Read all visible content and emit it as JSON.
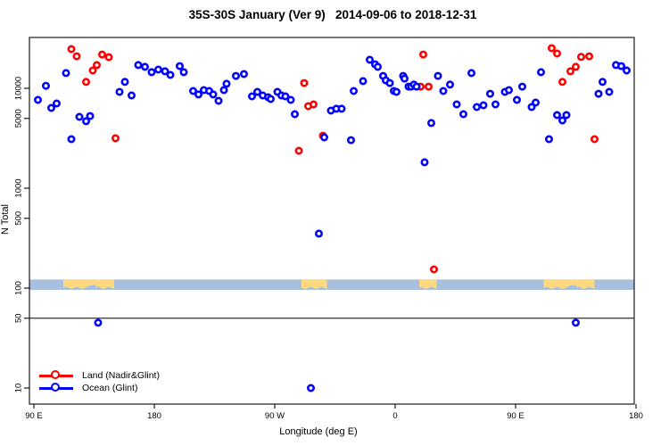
{
  "title": "35S-30S January (Ver 9)   2014-09-06 to 2018-12-31",
  "chart_data": {
    "type": "scatter",
    "xlabel": "Longitude (deg E)",
    "ylabel": "N Total",
    "x_axis": {
      "tick_positions_deg": [
        0,
        90,
        180,
        270,
        360,
        450
      ],
      "tick_labels": [
        "90 E",
        "180",
        "90 W",
        "0",
        "90 E",
        "180"
      ],
      "note": "longitude wraps eastward from 90E to 180 covering 450 degrees"
    },
    "y_axis": {
      "scale": "log",
      "ticks": [
        10,
        50,
        100,
        500,
        1000,
        5000,
        10000
      ],
      "ylim": [
        7,
        32000
      ]
    },
    "reference_line_n": 50,
    "map_band": {
      "n_range": [
        96,
        122
      ],
      "ocean_color": "#a8bfde",
      "land_color": "#fed97e",
      "land_segments_deg": [
        [
          22,
          60
        ],
        [
          200,
          219
        ],
        [
          288,
          301
        ],
        [
          381,
          419
        ]
      ]
    },
    "series": [
      {
        "name": "Land (Nadir&Glint)",
        "color": "#ff0000",
        "points": [
          [
            28,
            24700
          ],
          [
            32,
            20900
          ],
          [
            51,
            21800
          ],
          [
            56,
            20500
          ],
          [
            47,
            17100
          ],
          [
            44,
            15100
          ],
          [
            39,
            11600
          ],
          [
            61,
            3160
          ],
          [
            198,
            2370
          ],
          [
            202,
            11300
          ],
          [
            205,
            6630
          ],
          [
            209,
            6900
          ],
          [
            216,
            3360
          ],
          [
            289,
            10400
          ],
          [
            291,
            21800
          ],
          [
            295,
            10400
          ],
          [
            299,
            154
          ],
          [
            387,
            25200
          ],
          [
            391,
            22300
          ],
          [
            395,
            11600
          ],
          [
            401,
            14800
          ],
          [
            405,
            16400
          ],
          [
            409,
            20600
          ],
          [
            415,
            20900
          ],
          [
            419,
            3100
          ]
        ]
      },
      {
        "name": "Ocean (Glint)",
        "color": "#0000ff",
        "points": [
          [
            3,
            7660
          ],
          [
            9,
            10600
          ],
          [
            13,
            6360
          ],
          [
            17,
            7050
          ],
          [
            24,
            14200
          ],
          [
            28,
            3100
          ],
          [
            34,
            5180
          ],
          [
            39,
            4680
          ],
          [
            42,
            5280
          ],
          [
            48,
            45
          ],
          [
            64,
            9210
          ],
          [
            68,
            11600
          ],
          [
            73,
            8490
          ],
          [
            78,
            17100
          ],
          [
            83,
            16400
          ],
          [
            88,
            14500
          ],
          [
            93,
            15400
          ],
          [
            98,
            14800
          ],
          [
            102,
            13600
          ],
          [
            109,
            16700
          ],
          [
            112,
            14500
          ],
          [
            119,
            9400
          ],
          [
            123,
            8670
          ],
          [
            127,
            9590
          ],
          [
            131,
            9400
          ],
          [
            134,
            8670
          ],
          [
            138,
            7500
          ],
          [
            142,
            9590
          ],
          [
            144,
            11100
          ],
          [
            151,
            13300
          ],
          [
            157,
            13900
          ],
          [
            163,
            8310
          ],
          [
            167,
            9210
          ],
          [
            171,
            8490
          ],
          [
            175,
            8150
          ],
          [
            177,
            7820
          ],
          [
            182,
            9210
          ],
          [
            185,
            8490
          ],
          [
            188,
            8310
          ],
          [
            192,
            7660
          ],
          [
            195,
            5510
          ],
          [
            207,
            10
          ],
          [
            213,
            351
          ],
          [
            217,
            3230
          ],
          [
            222,
            5980
          ],
          [
            226,
            6240
          ],
          [
            230,
            6240
          ],
          [
            237,
            3030
          ],
          [
            239,
            9400
          ],
          [
            246,
            11800
          ],
          [
            251,
            19300
          ],
          [
            255,
            17400
          ],
          [
            257,
            16400
          ],
          [
            261,
            13300
          ],
          [
            263,
            12000
          ],
          [
            266,
            11300
          ],
          [
            269,
            9400
          ],
          [
            271,
            9210
          ],
          [
            276,
            13300
          ],
          [
            277,
            12500
          ],
          [
            280,
            10400
          ],
          [
            282,
            10400
          ],
          [
            284,
            10900
          ],
          [
            286,
            10400
          ],
          [
            292,
            1820
          ],
          [
            297,
            4490
          ],
          [
            302,
            13300
          ],
          [
            306,
            9400
          ],
          [
            311,
            10900
          ],
          [
            316,
            6900
          ],
          [
            321,
            5510
          ],
          [
            327,
            14200
          ],
          [
            331,
            6500
          ],
          [
            336,
            6760
          ],
          [
            341,
            8830
          ],
          [
            345,
            6900
          ],
          [
            352,
            9210
          ],
          [
            355,
            9590
          ],
          [
            361,
            7660
          ],
          [
            365,
            10400
          ],
          [
            372,
            6500
          ],
          [
            375,
            7200
          ],
          [
            379,
            14500
          ],
          [
            385,
            3100
          ],
          [
            391,
            5400
          ],
          [
            395,
            4770
          ],
          [
            398,
            5400
          ],
          [
            405,
            45
          ],
          [
            422,
            8830
          ],
          [
            425,
            11600
          ],
          [
            430,
            9210
          ],
          [
            435,
            17100
          ],
          [
            439,
            16700
          ],
          [
            443,
            15100
          ]
        ]
      }
    ],
    "legend_position": "bottom-left"
  }
}
